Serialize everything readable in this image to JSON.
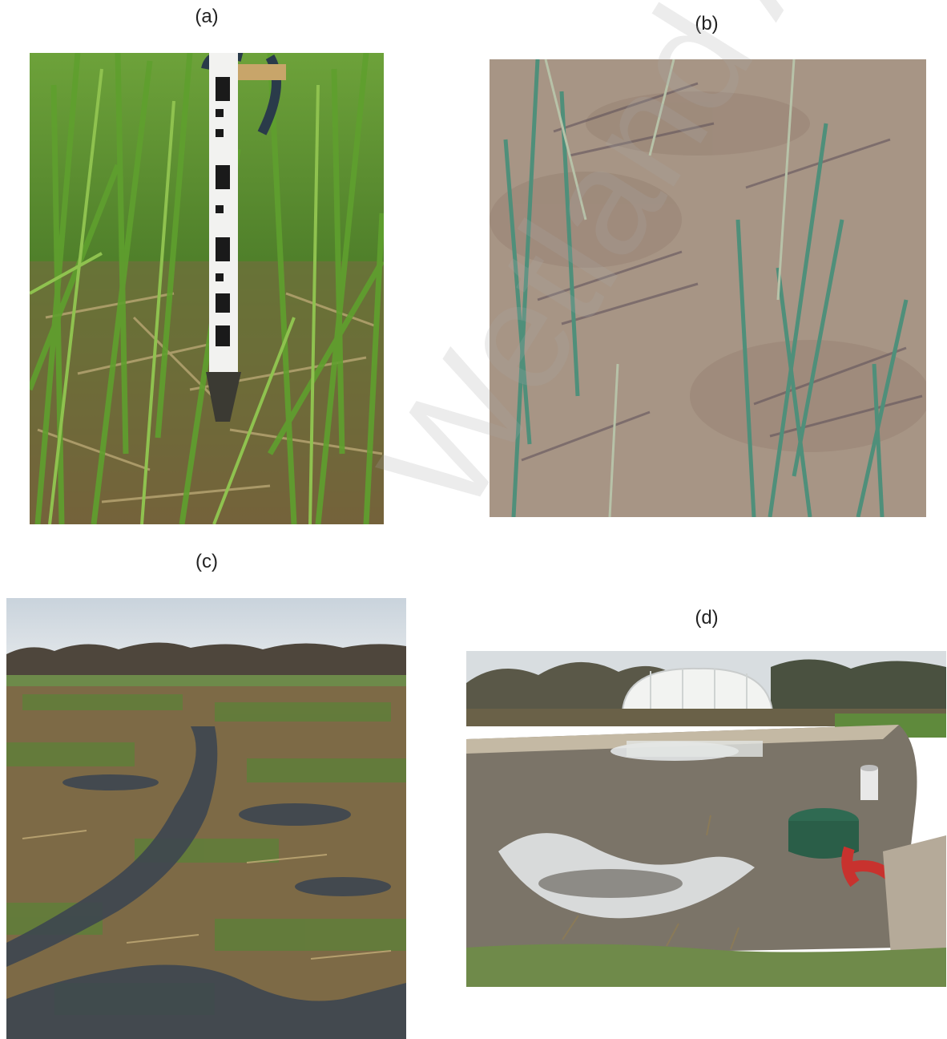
{
  "panels": [
    {
      "label": "(a)",
      "subject": "graduated measuring staff standing in dense green reed bed"
    },
    {
      "label": "(b)",
      "subject": "sparse young reeds on bare sandy soil"
    },
    {
      "label": "(c)",
      "subject": "flooded flattened reed field with trees on horizon"
    },
    {
      "label": "(d)",
      "subject": "lined pond with polytunnel, inspection chamber and red pipes"
    }
  ],
  "watermark_text": "Wetland Asso",
  "colors": {
    "reed_green": "#4f8a2b",
    "dry_straw": "#a8915a",
    "sand": "#a79585",
    "water": "#6f7378",
    "sky": "#d4dde5",
    "tank_green": "#2f6a52",
    "pipe_red": "#c8322e"
  }
}
